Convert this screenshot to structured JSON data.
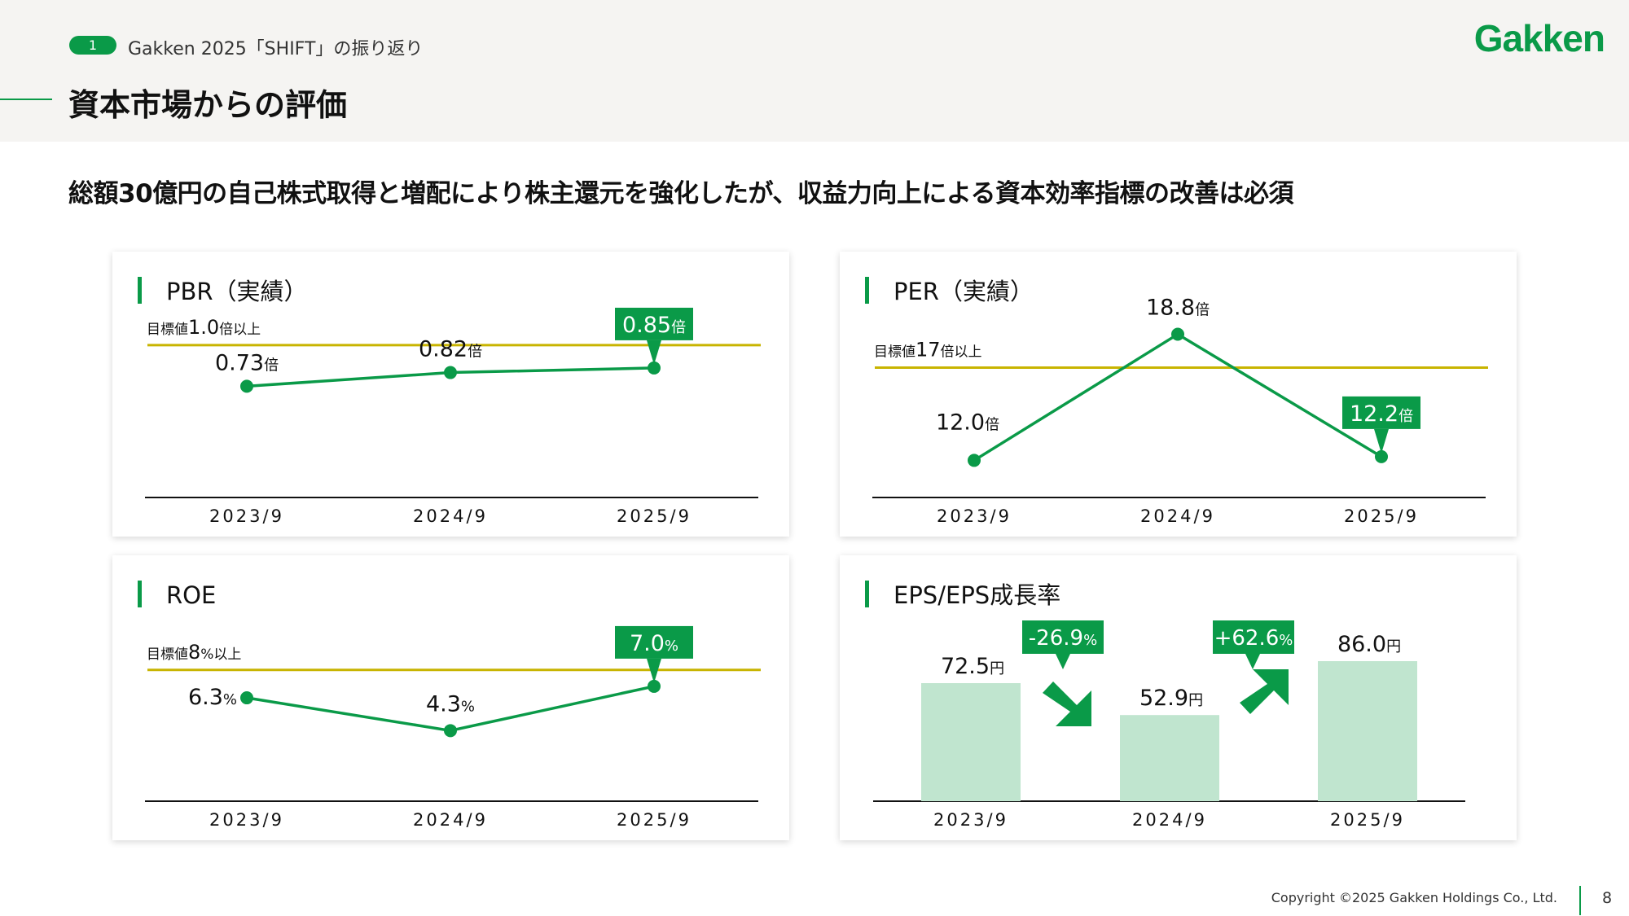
{
  "header": {
    "badge": "1",
    "section": "Gakken 2025「SHIFT」の振り返り",
    "title": "資本市場からの評価",
    "logo": "Gakken"
  },
  "headline": "総額30億円の自己株式取得と増配により株主還元を強化したが、収益力向上による資本効率指標の改善は必須",
  "colors": {
    "accent": "#0a9a48",
    "target_line": "#c8b400",
    "bar": "#c0e5cf",
    "text": "#111111"
  },
  "chart_data": [
    {
      "type": "line",
      "title": "PBR（実績）",
      "categories": [
        "2023/9",
        "2024/9",
        "2025/9"
      ],
      "values": [
        0.73,
        0.82,
        0.85
      ],
      "unit": "倍",
      "ylim": [
        0,
        1.4
      ],
      "target": {
        "value": 1.0,
        "prefix": "目標値",
        "value_label": "1.0",
        "suffix": "倍以上"
      },
      "highlight_index": 2
    },
    {
      "type": "line",
      "title": "PER（実績）",
      "categories": [
        "2023/9",
        "2024/9",
        "2025/9"
      ],
      "values": [
        12.0,
        18.8,
        12.2
      ],
      "unit": "倍",
      "ylim": [
        10,
        21.5
      ],
      "target": {
        "value": 17,
        "prefix": "目標値",
        "value_label": "17",
        "suffix": "倍以上"
      },
      "highlight_index": 2
    },
    {
      "type": "line",
      "title": "ROE",
      "categories": [
        "2023/9",
        "2024/9",
        "2025/9"
      ],
      "values": [
        6.3,
        4.3,
        7.0
      ],
      "unit": "%",
      "ylim": [
        0,
        13
      ],
      "target": {
        "value": 8,
        "prefix": "目標値",
        "value_label": "8",
        "suffix": "%以上"
      },
      "highlight_index": 2
    },
    {
      "type": "bar",
      "title": "EPS/EPS成長率",
      "categories": [
        "2023/9",
        "2024/9",
        "2025/9"
      ],
      "values": [
        72.5,
        52.9,
        86.0
      ],
      "unit": "円",
      "ylim": [
        0,
        131
      ],
      "growth": [
        {
          "label": "-26.9",
          "unit": "%",
          "direction": "down",
          "icon": "arrow-down-right-icon"
        },
        {
          "label": "+62.6",
          "unit": "%",
          "direction": "up",
          "icon": "arrow-up-right-icon"
        }
      ]
    }
  ],
  "footer": {
    "copyright": "Copyright ©2025 Gakken Holdings Co., Ltd.",
    "page": "8"
  }
}
